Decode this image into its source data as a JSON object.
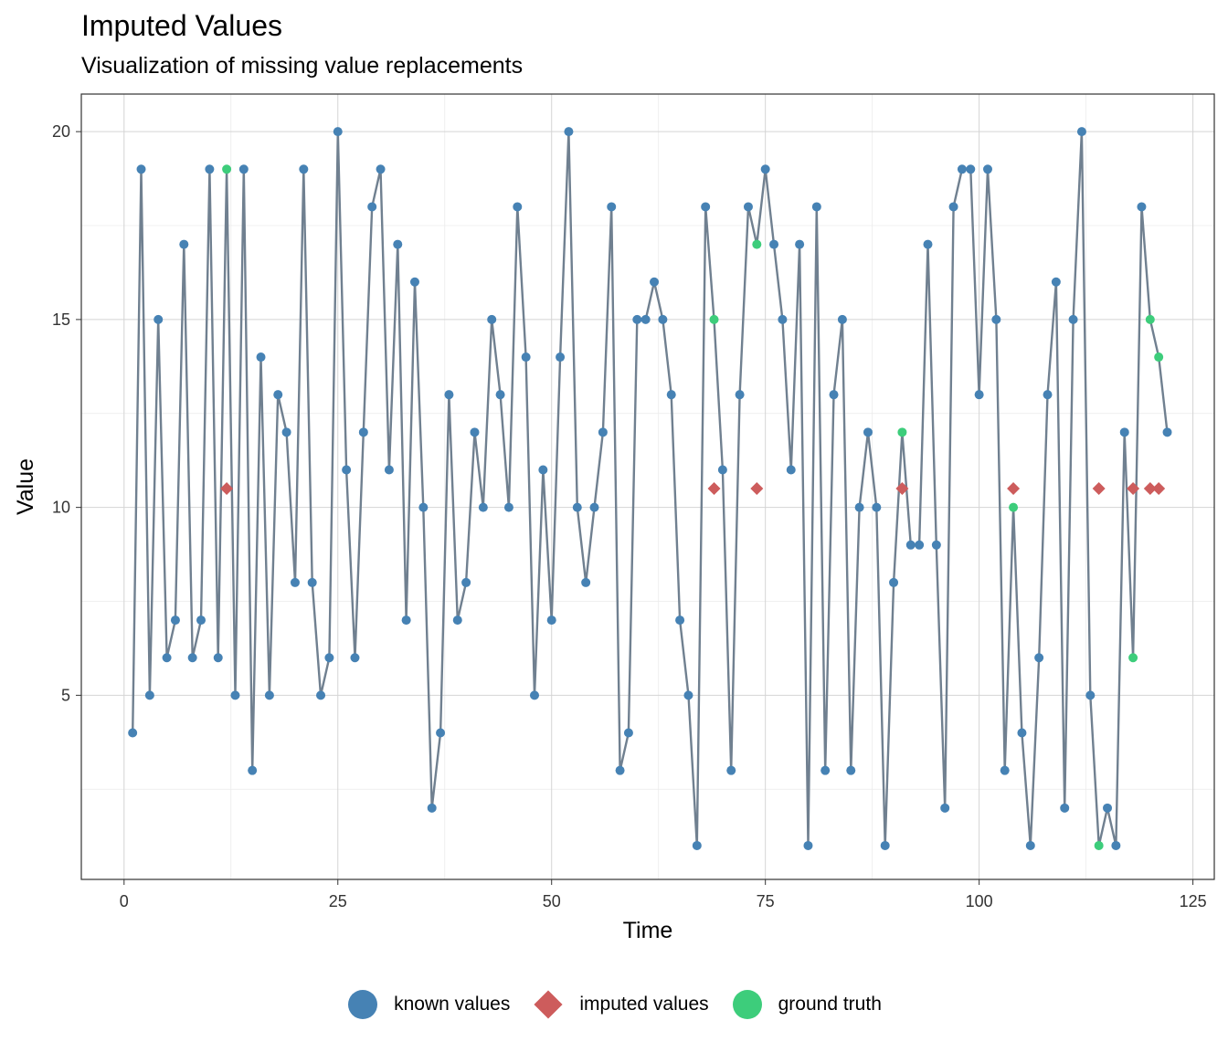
{
  "chart_data": {
    "type": "line",
    "title": "Imputed Values",
    "subtitle": "Visualization of missing value replacements",
    "xlabel": "Time",
    "ylabel": "Value",
    "xlim": [
      -5,
      127.5
    ],
    "ylim": [
      0.1,
      21
    ],
    "x_ticks": [
      0,
      25,
      50,
      75,
      100,
      125
    ],
    "y_ticks": [
      5,
      10,
      15,
      20
    ],
    "grid": true,
    "legend_position": "bottom",
    "colors": {
      "line": "#708090",
      "known": "#4682B4",
      "imputed": "#CD5C5C",
      "truth": "#3DCD7B"
    },
    "legend": [
      {
        "label": "known values",
        "shape": "circle",
        "color": "#4682B4"
      },
      {
        "label": "imputed values",
        "shape": "diamond",
        "color": "#CD5C5C"
      },
      {
        "label": "ground truth",
        "shape": "circle",
        "color": "#3DCD7B"
      }
    ],
    "series": [
      {
        "name": "known values",
        "x": [
          1,
          2,
          3,
          4,
          5,
          6,
          7,
          8,
          9,
          10,
          11,
          13,
          14,
          15,
          16,
          17,
          18,
          19,
          20,
          21,
          22,
          23,
          24,
          25,
          26,
          27,
          28,
          29,
          30,
          31,
          32,
          33,
          34,
          35,
          36,
          37,
          38,
          39,
          40,
          41,
          42,
          43,
          44,
          45,
          46,
          47,
          48,
          49,
          50,
          51,
          52,
          53,
          54,
          55,
          56,
          57,
          58,
          59,
          60,
          61,
          62,
          63,
          64,
          65,
          66,
          67,
          68,
          70,
          71,
          72,
          73,
          75,
          76,
          77,
          78,
          79,
          80,
          81,
          82,
          83,
          84,
          85,
          86,
          87,
          88,
          89,
          90,
          92,
          93,
          94,
          95,
          96,
          97,
          98,
          99,
          100,
          101,
          102,
          103,
          105,
          106,
          107,
          108,
          109,
          110,
          111,
          112,
          113,
          115,
          116,
          117,
          119,
          122
        ],
        "y": [
          4,
          19,
          5,
          15,
          6,
          7,
          17,
          6,
          7,
          19,
          6,
          5,
          19,
          3,
          14,
          5,
          13,
          12,
          8,
          19,
          8,
          5,
          6,
          20,
          11,
          6,
          12,
          18,
          19,
          11,
          17,
          7,
          16,
          10,
          2,
          4,
          13,
          7,
          8,
          12,
          10,
          15,
          13,
          10,
          18,
          14,
          5,
          11,
          7,
          14,
          20,
          10,
          8,
          10,
          12,
          18,
          3,
          4,
          15,
          15,
          16,
          15,
          13,
          7,
          5,
          1,
          18,
          11,
          3,
          13,
          18,
          19,
          17,
          15,
          11,
          17,
          1,
          18,
          3,
          13,
          15,
          3,
          10,
          12,
          10,
          1,
          8,
          9,
          9,
          17,
          9,
          2,
          18,
          19,
          19,
          13,
          19,
          15,
          3,
          4,
          1,
          6,
          13,
          16,
          2,
          15,
          20,
          5,
          2,
          1,
          12,
          18,
          12
        ]
      },
      {
        "name": "imputed values",
        "x": [
          12,
          69,
          74,
          91,
          104,
          114,
          118,
          120,
          121
        ],
        "y": [
          10.5,
          10.5,
          10.5,
          10.5,
          10.5,
          10.5,
          10.5,
          10.5,
          10.5
        ]
      },
      {
        "name": "ground truth",
        "x": [
          12,
          69,
          74,
          91,
          104,
          114,
          118,
          120,
          121
        ],
        "y": [
          19,
          15,
          17,
          12,
          10,
          1,
          6,
          15,
          14
        ]
      }
    ]
  }
}
